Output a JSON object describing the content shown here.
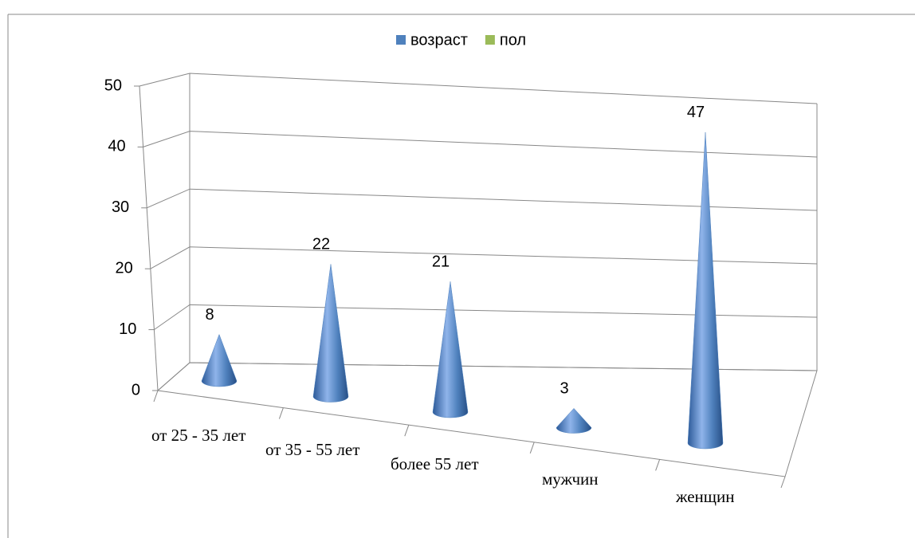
{
  "chart_data": {
    "type": "cone",
    "categories": [
      "от 25 - 35 лет",
      "от 35 - 55 лет",
      "более 55 лет",
      "мужчин",
      "женщин"
    ],
    "series": [
      {
        "name": "возраст",
        "color": "#4f81bd",
        "values": [
          8,
          22,
          21,
          3,
          47
        ]
      },
      {
        "name": "пол",
        "color": "#9bbb59",
        "values": [
          null,
          null,
          null,
          null,
          null
        ]
      }
    ],
    "ylim": [
      0,
      50
    ],
    "yticks": [
      0,
      10,
      20,
      30,
      40,
      50
    ],
    "grid": true,
    "legend": "top"
  }
}
